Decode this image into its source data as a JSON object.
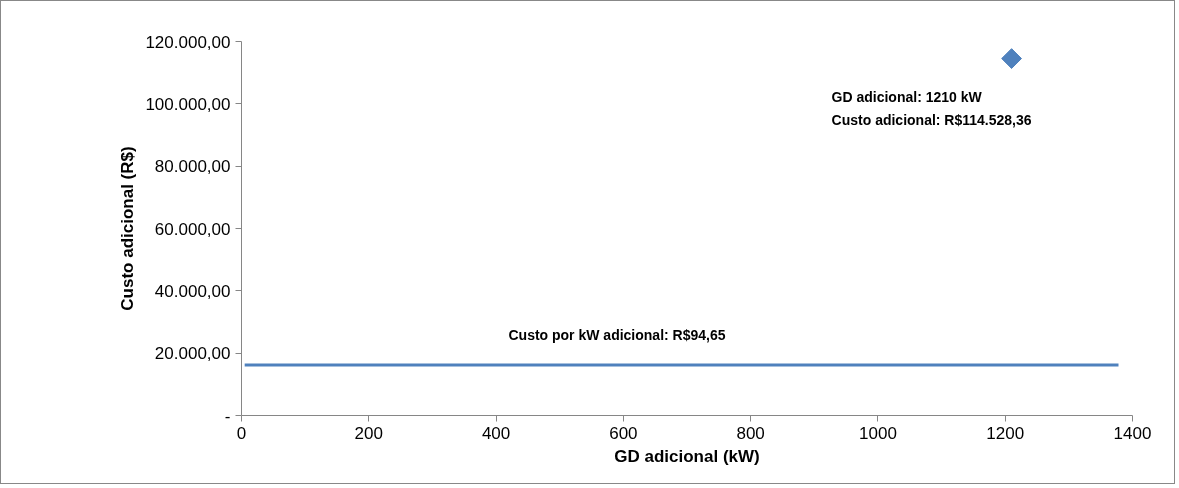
{
  "chart_data": {
    "type": "line",
    "xlabel": "GD adicional (kW)",
    "ylabel": "Custo adicional (R$)",
    "series": [
      {
        "color": "#4f81bd",
        "x": [
          5,
          1378
        ],
        "values": [
          16200,
          16200
        ],
        "marker": "none",
        "line_style": "solid"
      },
      {
        "type": "scatter",
        "color": "#4f81bd",
        "x": [
          1210
        ],
        "values": [
          114528.36
        ],
        "marker": "diamond"
      }
    ],
    "xlim": [
      0,
      1400
    ],
    "xticks": [
      0,
      200,
      400,
      600,
      800,
      1000,
      1200,
      1400
    ],
    "ylim": [
      0,
      120000
    ],
    "yticks": [
      {
        "value": 0,
        "label": "-"
      },
      {
        "value": 20000,
        "label": "20.000,00"
      },
      {
        "value": 40000,
        "label": "40.000,00"
      },
      {
        "value": 60000,
        "label": "60.000,00"
      },
      {
        "value": 80000,
        "label": "80.000,00"
      },
      {
        "value": 100000,
        "label": "100.000,00"
      },
      {
        "value": 120000,
        "label": "120.000,00"
      }
    ],
    "annotations": [
      {
        "text": "Custo por kW adicional: R$94,65",
        "x": 590,
        "y": 16200
      },
      {
        "text": "GD adicional: 1210 kW\nCusto adicional: R$114.528,36",
        "x": 1210,
        "y": 114528.36
      }
    ],
    "grid": false
  }
}
